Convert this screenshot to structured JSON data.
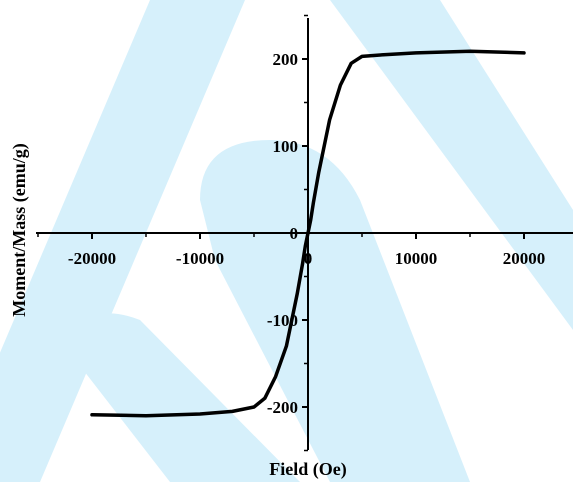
{
  "chart_data": {
    "type": "line",
    "title": "",
    "xlabel": "Field (Oe)",
    "ylabel": "Moment/Mass (emu/g)",
    "xlim": [
      -25000,
      25000
    ],
    "ylim": [
      -250,
      250
    ],
    "x_ticks": [
      -20000,
      -10000,
      0,
      10000,
      20000
    ],
    "y_ticks": [
      -200,
      -100,
      0,
      100,
      200
    ],
    "x_tick_labels": [
      "-20000",
      "-10000",
      "0",
      "10000",
      "20000"
    ],
    "y_tick_labels": [
      "-200",
      "-100",
      "0",
      "100",
      "200"
    ],
    "grid": false,
    "legend": "none",
    "series": [
      {
        "color": "#000000",
        "x": [
          -20000,
          -15000,
          -10000,
          -7000,
          -5000,
          -4000,
          -3000,
          -2000,
          -1500,
          -1000,
          -500,
          -250,
          0,
          250,
          500,
          1000,
          1500,
          2000,
          3000,
          4000,
          5000,
          7000,
          10000,
          15000,
          20000
        ],
        "values": [
          -209,
          -210,
          -208,
          -205,
          -200,
          -190,
          -165,
          -130,
          -100,
          -70,
          -35,
          -15,
          0,
          15,
          35,
          70,
          100,
          130,
          170,
          195,
          203,
          205,
          207,
          209,
          207
        ]
      }
    ]
  },
  "colors": {
    "curve": "#000000",
    "watermark": "#d6f0fb"
  }
}
